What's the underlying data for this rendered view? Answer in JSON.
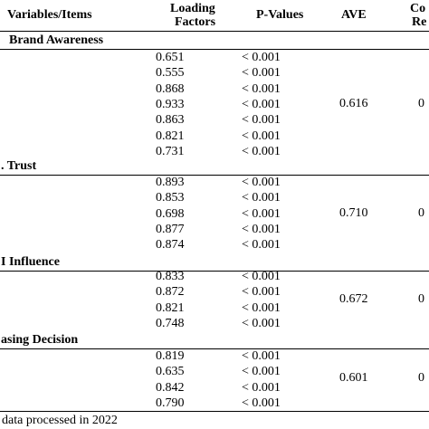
{
  "header": {
    "variables": "Variables/Items",
    "loading": [
      "Loading",
      "Factors"
    ],
    "pvalues": "P-Values",
    "ave": "AVE",
    "cr": [
      "Co",
      "Re"
    ]
  },
  "sections": [
    {
      "title": "Brand Awareness",
      "loading": [
        "0.651",
        "0.555",
        "0.868",
        "0.933",
        "0.863",
        "0.821",
        "0.731"
      ],
      "pvalues": [
        "< 0.001",
        "< 0.001",
        "< 0.001",
        "< 0.001",
        "< 0.001",
        "< 0.001",
        "< 0.001"
      ],
      "ave": "0.616",
      "cr": "0"
    },
    {
      "title": ". Trust",
      "loading": [
        "0.893",
        "0.853",
        "0.698",
        "0.877",
        "0.874"
      ],
      "pvalues": [
        "< 0.001",
        "< 0.001",
        "< 0.001",
        "< 0.001",
        "< 0.001"
      ],
      "ave": "0.710",
      "cr": "0"
    },
    {
      "title": "I Influence",
      "loading": [
        "0.833",
        "0.872",
        "0.821",
        "0.748"
      ],
      "pvalues": [
        "< 0.001",
        "< 0.001",
        "< 0.001",
        "< 0.001"
      ],
      "ave": "0.672",
      "cr": "0"
    },
    {
      "title": "asing Decision",
      "loading": [
        "0.819",
        "0.635",
        "0.842",
        "0.790"
      ],
      "pvalues": [
        "< 0.001",
        "< 0.001",
        "< 0.001",
        "< 0.001"
      ],
      "ave": "0.601",
      "cr": "0"
    }
  ],
  "footnote": "data processed in 2022"
}
